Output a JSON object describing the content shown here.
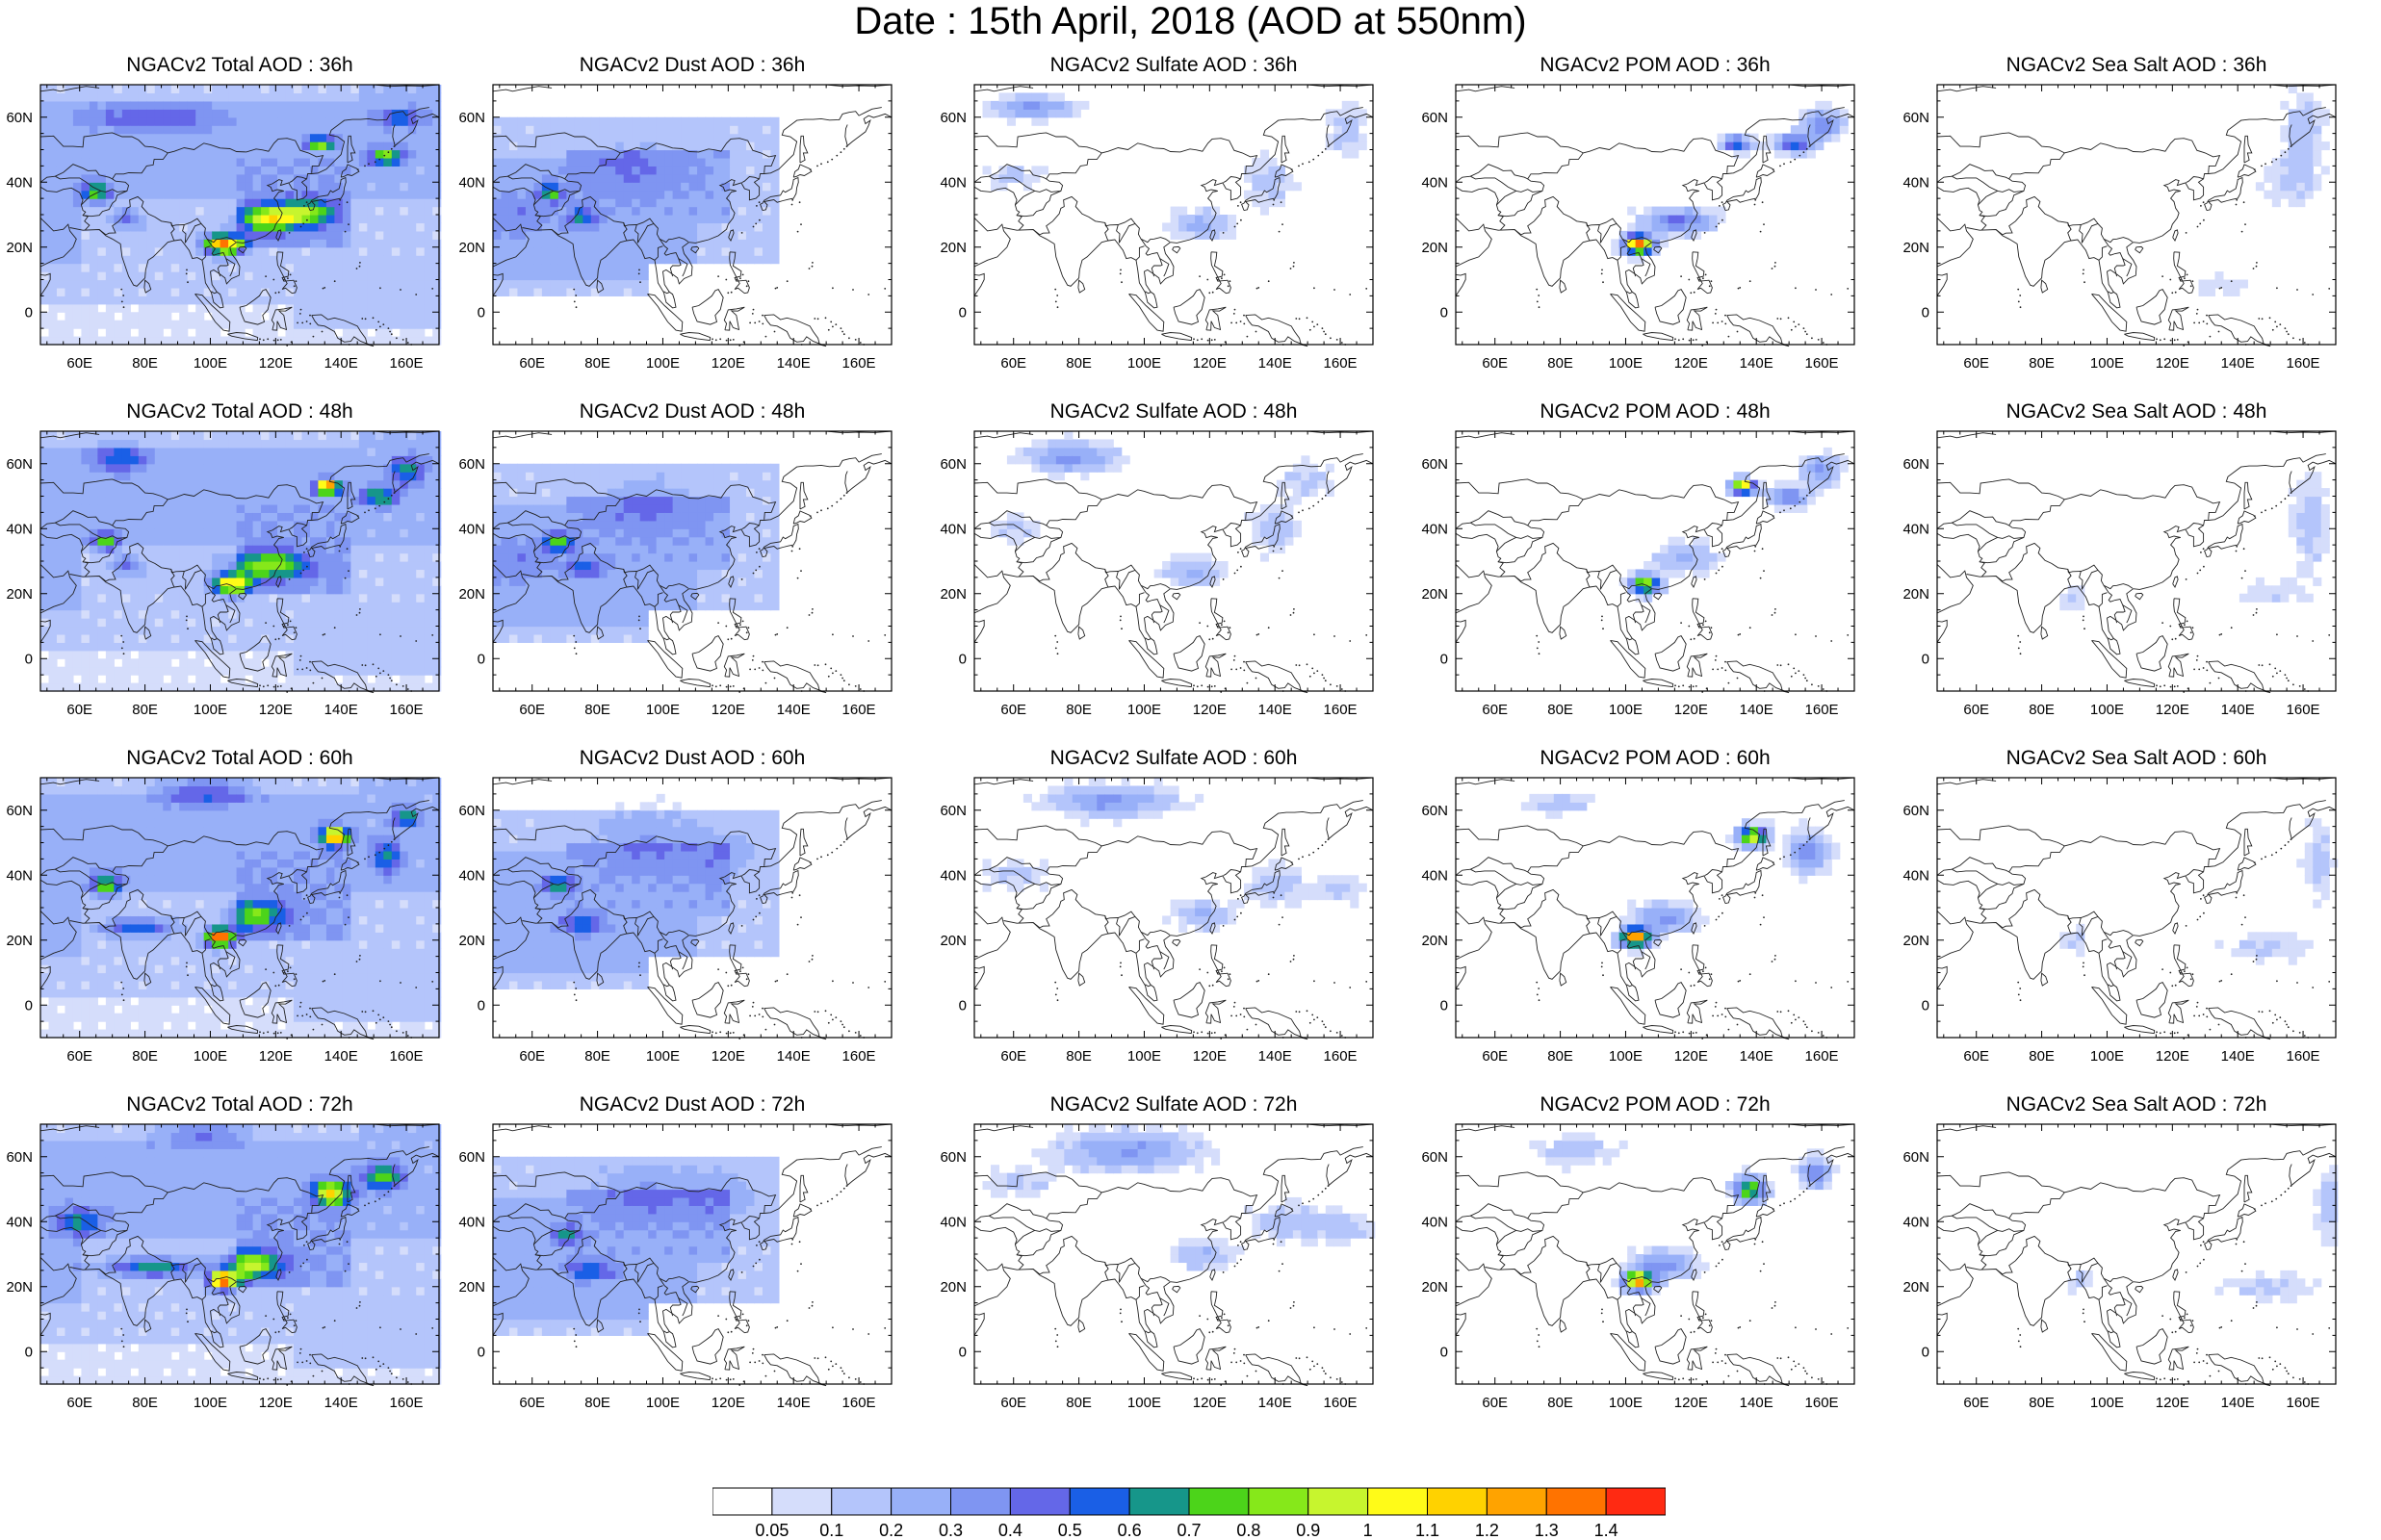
{
  "figure": {
    "title": "Date : 15th April, 2018 (AOD at 550nm)"
  },
  "axes": {
    "lon_ticks": [
      "60E",
      "80E",
      "100E",
      "120E",
      "140E",
      "160E"
    ],
    "lon_tick_values": [
      60,
      80,
      100,
      120,
      140,
      160
    ],
    "lat_ticks": [
      "60N",
      "40N",
      "20N",
      "0"
    ],
    "lat_tick_values": [
      60,
      40,
      20,
      0
    ],
    "lon_range": [
      48,
      170
    ],
    "lat_range": [
      -10,
      70
    ]
  },
  "panels": [
    {
      "title": "NGACv2 Total AOD : 36h",
      "species": "total",
      "hour": "36h"
    },
    {
      "title": "NGACv2 Dust AOD : 36h",
      "species": "dust",
      "hour": "36h"
    },
    {
      "title": "NGACv2 Sulfate AOD : 36h",
      "species": "sulfate",
      "hour": "36h"
    },
    {
      "title": "NGACv2 POM AOD : 36h",
      "species": "pom",
      "hour": "36h"
    },
    {
      "title": "NGACv2 Sea Salt AOD : 36h",
      "species": "seasalt",
      "hour": "36h"
    },
    {
      "title": "NGACv2 Total AOD : 48h",
      "species": "total",
      "hour": "48h"
    },
    {
      "title": "NGACv2 Dust AOD : 48h",
      "species": "dust",
      "hour": "48h"
    },
    {
      "title": "NGACv2 Sulfate AOD : 48h",
      "species": "sulfate",
      "hour": "48h"
    },
    {
      "title": "NGACv2 POM AOD : 48h",
      "species": "pom",
      "hour": "48h"
    },
    {
      "title": "NGACv2 Sea Salt AOD : 48h",
      "species": "seasalt",
      "hour": "48h"
    },
    {
      "title": "NGACv2 Total AOD : 60h",
      "species": "total",
      "hour": "60h"
    },
    {
      "title": "NGACv2 Dust AOD : 60h",
      "species": "dust",
      "hour": "60h"
    },
    {
      "title": "NGACv2 Sulfate AOD : 60h",
      "species": "sulfate",
      "hour": "60h"
    },
    {
      "title": "NGACv2 POM AOD : 60h",
      "species": "pom",
      "hour": "60h"
    },
    {
      "title": "NGACv2 Sea Salt AOD : 60h",
      "species": "seasalt",
      "hour": "60h"
    },
    {
      "title": "NGACv2 Total AOD : 72h",
      "species": "total",
      "hour": "72h"
    },
    {
      "title": "NGACv2 Dust AOD : 72h",
      "species": "dust",
      "hour": "72h"
    },
    {
      "title": "NGACv2 Sulfate AOD : 72h",
      "species": "sulfate",
      "hour": "72h"
    },
    {
      "title": "NGACv2 POM AOD : 72h",
      "species": "pom",
      "hour": "72h"
    },
    {
      "title": "NGACv2 Sea Salt  AOD : 72h",
      "species": "seasalt",
      "hour": "72h"
    }
  ],
  "colorbar": {
    "labels": [
      "0.05",
      "0.1",
      "0.2",
      "0.3",
      "0.4",
      "0.5",
      "0.6",
      "0.7",
      "0.8",
      "0.9",
      "1",
      "1.1",
      "1.2",
      "1.3",
      "1.4"
    ],
    "colors": [
      "#ffffff",
      "#d5ddfb",
      "#b4c5fb",
      "#98b0f8",
      "#7f95f2",
      "#6467e8",
      "#1a5fe6",
      "#16968a",
      "#4cd41a",
      "#86e81a",
      "#c7f52e",
      "#fffb18",
      "#ffd200",
      "#ffa300",
      "#ff7300",
      "#ff2a12"
    ]
  }
}
